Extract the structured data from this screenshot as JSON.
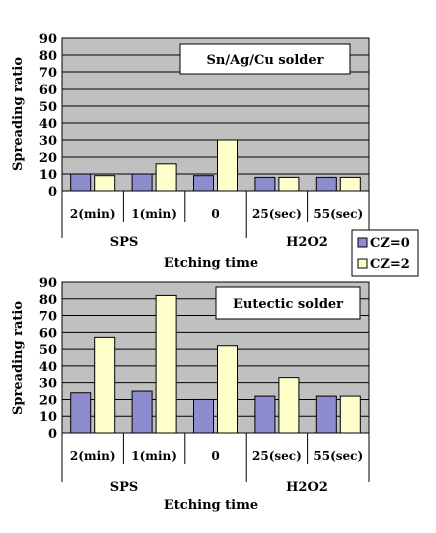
{
  "colors": {
    "plot_bg": "#c0c0c0",
    "gridline": "#000000",
    "CZ-0": "#8c8ccf",
    "CZ-2": "#ffffcc",
    "axis": "#000000"
  },
  "legend": {
    "items": [
      "CZ=0",
      "CZ=2"
    ]
  },
  "chart_data": [
    {
      "type": "bar",
      "annotation": "Sn/Ag/Cu solder",
      "ylabel": "Spreading ratio",
      "xlabel": "Etching time",
      "categories": [
        "2(min)",
        "1(min)",
        "0",
        "25(sec)",
        "55(sec)"
      ],
      "groups": [
        {
          "label": "SPS",
          "categories": [
            "2(min)",
            "1(min)",
            "0"
          ]
        },
        {
          "label": "H2O2",
          "categories": [
            "25(sec)",
            "55(sec)"
          ]
        }
      ],
      "series": [
        {
          "name": "CZ=0",
          "values": [
            10,
            10,
            9,
            8,
            8
          ]
        },
        {
          "name": "CZ=2",
          "values": [
            9,
            16,
            30,
            8,
            8
          ]
        }
      ],
      "ylim": [
        0,
        90
      ],
      "yticks": [
        0,
        10,
        20,
        30,
        40,
        50,
        60,
        70,
        80,
        90
      ],
      "grid": true
    },
    {
      "type": "bar",
      "annotation": "Eutectic solder",
      "ylabel": "Spreading ratio",
      "xlabel": "Etching time",
      "categories": [
        "2(min)",
        "1(min)",
        "0",
        "25(sec)",
        "55(sec)"
      ],
      "groups": [
        {
          "label": "SPS",
          "categories": [
            "2(min)",
            "1(min)",
            "0"
          ]
        },
        {
          "label": "H2O2",
          "categories": [
            "25(sec)",
            "55(sec)"
          ]
        }
      ],
      "series": [
        {
          "name": "CZ=0",
          "values": [
            24,
            25,
            20,
            22,
            22
          ]
        },
        {
          "name": "CZ=2",
          "values": [
            57,
            82,
            52,
            33,
            22
          ]
        }
      ],
      "ylim": [
        0,
        90
      ],
      "yticks": [
        0,
        10,
        20,
        30,
        40,
        50,
        60,
        70,
        80,
        90
      ],
      "grid": true
    }
  ]
}
